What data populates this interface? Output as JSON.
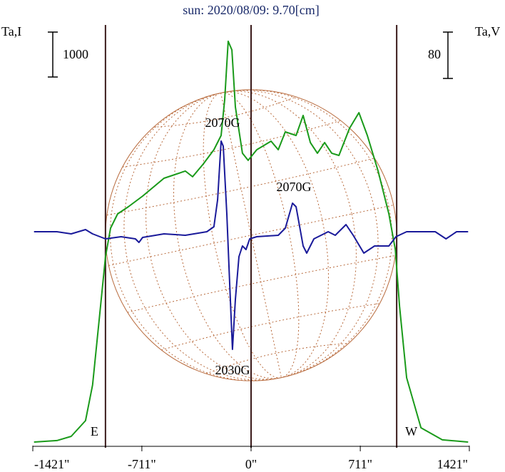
{
  "chart_data": {
    "type": "line",
    "title": "sun: 2020/08/09: 9.70[cm]",
    "y_label": "Ta,I",
    "y2_label": "Ta,V",
    "scale_bars": [
      {
        "label": "1000",
        "value": 1000,
        "axis": "y"
      },
      {
        "label": "80",
        "value": 80,
        "axis": "y2"
      }
    ],
    "limb_labels": [
      "E",
      "W"
    ],
    "limbs": [
      -948,
      948
    ],
    "annotations": [
      "2070G",
      "2070G",
      "2030G"
    ],
    "xlim": [
      -1421,
      1421
    ],
    "xticks": [
      {
        "value": -1421,
        "label": "-1421\""
      },
      {
        "value": -711,
        "label": "-711\""
      },
      {
        "value": 0,
        "label": "0\""
      },
      {
        "value": 711,
        "label": "711\""
      },
      {
        "value": 1421,
        "label": "1421\""
      }
    ],
    "ylim": [
      -80,
      9285
    ],
    "y2lim": [
      -363,
      363
    ],
    "series": [
      {
        "name": "I",
        "color": "#1a9a1a",
        "x": [
          -1413,
          -1264,
          -1171,
          -1078,
          -1032,
          -985,
          -948,
          -915,
          -869,
          -799,
          -706,
          -567,
          -428,
          -381,
          -311,
          -242,
          -195,
          -172,
          -149,
          -125,
          -102,
          -56,
          -19,
          37,
          130,
          177,
          223,
          293,
          339,
          386,
          432,
          479,
          525,
          572,
          641,
          702,
          757,
          827,
          897,
          939,
          967,
          1013,
          1106,
          1245,
          1413
        ],
        "values": [
          0,
          32,
          127,
          476,
          1270,
          2857,
          4127,
          4762,
          5079,
          5238,
          5476,
          5873,
          6032,
          5905,
          6190,
          6508,
          6825,
          7619,
          8921,
          8730,
          7460,
          6429,
          6270,
          6508,
          6698,
          6508,
          6905,
          6825,
          7270,
          6667,
          6429,
          6667,
          6429,
          6381,
          6984,
          7333,
          6825,
          6032,
          5079,
          4286,
          3016,
          1429,
          317,
          48,
          0
        ]
      },
      {
        "name": "V",
        "color": "#1a1a9a",
        "axis": "y2",
        "x": [
          -1413,
          -1264,
          -1171,
          -1078,
          -1032,
          -948,
          -846,
          -753,
          -730,
          -706,
          -567,
          -428,
          -288,
          -242,
          -218,
          -195,
          -181,
          -158,
          -139,
          -121,
          -102,
          -79,
          -56,
          -33,
          -9,
          37,
          177,
          223,
          270,
          293,
          339,
          362,
          409,
          502,
          548,
          618,
          665,
          734,
          804,
          897,
          943,
          1013,
          1199,
          1269,
          1338,
          1413
        ],
        "values": [
          6.2,
          6.2,
          2.5,
          9.8,
          2.5,
          -6.2,
          -2.5,
          -6.2,
          -12.3,
          -3.7,
          2.5,
          0,
          6.2,
          14.8,
          61.5,
          162.5,
          153.8,
          36.9,
          -86.2,
          -196.9,
          -110.8,
          -36.9,
          -18.5,
          -24.6,
          -6.2,
          -2.5,
          0,
          12.3,
          55.4,
          49.2,
          -18.5,
          -30.8,
          -6.2,
          6.2,
          0,
          18.5,
          0,
          -30.8,
          -18.5,
          -18.5,
          -2.5,
          6.2,
          6.2,
          -6.2,
          6.2,
          6.2
        ]
      }
    ]
  }
}
